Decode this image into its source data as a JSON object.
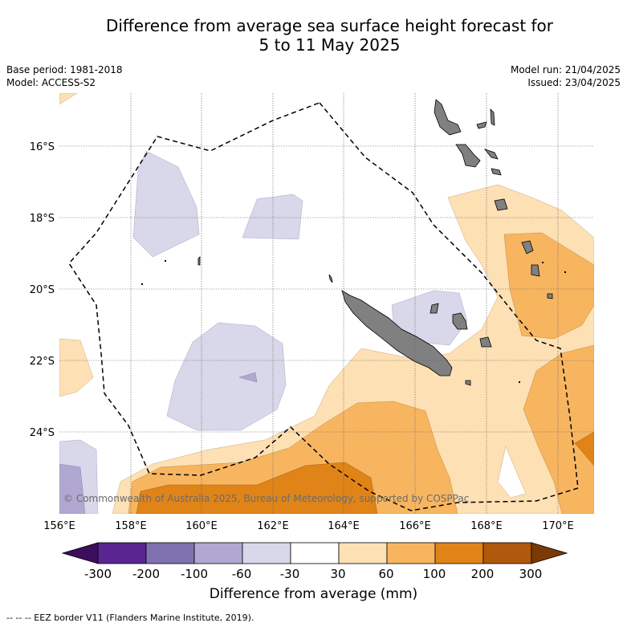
{
  "title": {
    "line1": "Difference from average sea surface height forecast for",
    "line2": "5 to 11 May 2025"
  },
  "meta": {
    "base_period": "Base period: 1981-2018",
    "model": "Model: ACCESS-S2",
    "model_run": "Model run: 21/04/2025",
    "issued": "Issued: 23/04/2025"
  },
  "map": {
    "lon_ticks": [
      "156°E",
      "158°E",
      "160°E",
      "162°E",
      "164°E",
      "166°E",
      "168°E",
      "170°E"
    ],
    "lat_ticks": [
      "16°S",
      "18°S",
      "20°S",
      "22°S",
      "24°S"
    ],
    "copyright": "© Commonwealth of Australia 2025, Bureau of Meteorology, supported by COSPPac"
  },
  "colorbar": {
    "labels": [
      "-300",
      "-200",
      "-100",
      "-60",
      "-30",
      "30",
      "60",
      "100",
      "200",
      "300"
    ],
    "colors": [
      "#3b0f5e",
      "#5a2590",
      "#8072b0",
      "#b0a8d2",
      "#d8d8ea",
      "#ffffff",
      "#fde0b4",
      "#f8b560",
      "#e08418",
      "#b0580c",
      "#7a3a06"
    ],
    "title": "Difference from average (mm)"
  },
  "footer": "-- -- -- EEZ border V11 (Flanders Marine Institute, 2019)."
}
